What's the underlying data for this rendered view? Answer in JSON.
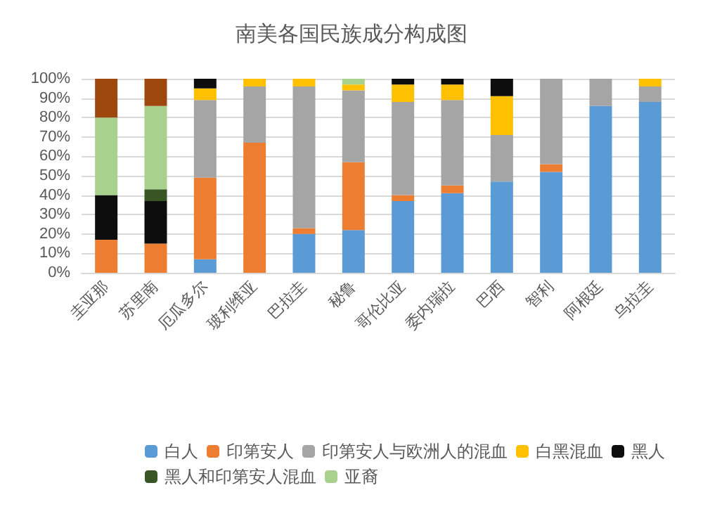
{
  "chart_data": {
    "type": "bar",
    "title": "南美各国民族成分构成图",
    "stacked": true,
    "categories": [
      "圭亚那",
      "苏里南",
      "厄瓜多尔",
      "玻利维亚",
      "巴拉圭",
      "秘鲁",
      "哥伦比亚",
      "委内瑞拉",
      "巴西",
      "智利",
      "阿根廷",
      "乌拉圭"
    ],
    "series": [
      {
        "name": "白人",
        "color": "#5b9bd5",
        "values": [
          0,
          0,
          7,
          0,
          20,
          22,
          37,
          41,
          47,
          52,
          86,
          88
        ]
      },
      {
        "name": "印第安人",
        "color": "#ed7d31",
        "values": [
          17,
          15,
          42,
          67,
          3,
          35,
          3,
          4,
          0,
          4,
          0,
          0
        ]
      },
      {
        "name": "印第安人与欧洲人的混血",
        "color": "#a5a5a5",
        "values": [
          0,
          0,
          40,
          29,
          73,
          37,
          48,
          44,
          24,
          44,
          14,
          8
        ]
      },
      {
        "name": "白黑混血",
        "color": "#ffc000",
        "values": [
          0,
          0,
          6,
          4,
          4,
          3,
          9,
          8,
          20,
          0,
          0,
          4
        ]
      },
      {
        "name": "黑人",
        "color": "#0d0d0d",
        "values": [
          23,
          22,
          5,
          0,
          0,
          0,
          3,
          3,
          9,
          0,
          0,
          0
        ]
      },
      {
        "name": "黑人和印第安人混血",
        "color": "#375623",
        "values": [
          0,
          6,
          0,
          0,
          0,
          0,
          0,
          0,
          0,
          0,
          0,
          0
        ]
      },
      {
        "name": "亚裔",
        "color": "#a9d18e",
        "values": [
          40,
          43,
          0,
          0,
          0,
          3,
          0,
          0,
          0,
          0,
          0,
          0
        ]
      },
      {
        "color": "#9e480e",
        "values": [
          20,
          14,
          0,
          0,
          0,
          0,
          0,
          0,
          0,
          0,
          0,
          0
        ]
      }
    ],
    "ylim": [
      0,
      100
    ],
    "yticks": [
      {
        "value": 0,
        "label": "0%"
      },
      {
        "value": 10,
        "label": "10%"
      },
      {
        "value": 20,
        "label": "20%"
      },
      {
        "value": 30,
        "label": "30%"
      },
      {
        "value": 40,
        "label": "40%"
      },
      {
        "value": 50,
        "label": "50%"
      },
      {
        "value": 60,
        "label": "60%"
      },
      {
        "value": 70,
        "label": "70%"
      },
      {
        "value": 80,
        "label": "80%"
      },
      {
        "value": 90,
        "label": "90%"
      },
      {
        "value": 100,
        "label": "100%"
      }
    ],
    "grid": "y",
    "legend": "bottom"
  }
}
